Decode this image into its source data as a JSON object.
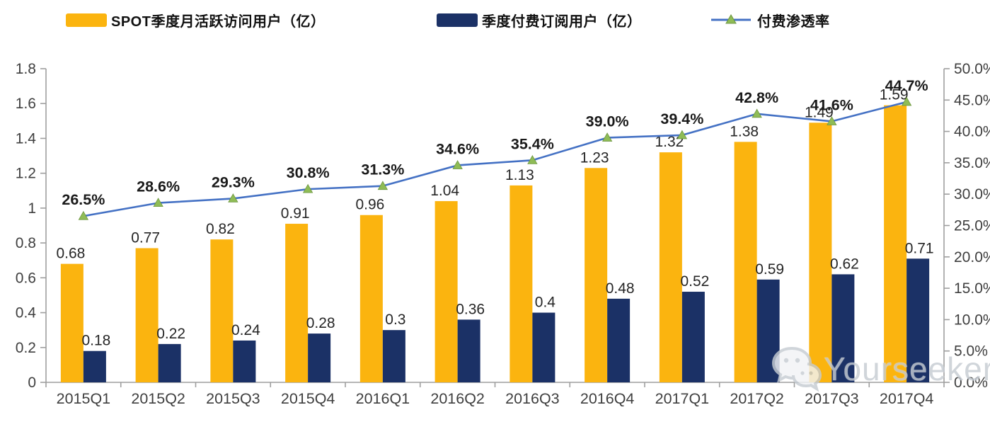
{
  "legend": [
    {
      "label": "SPOT季度月活跃访问用户（亿）",
      "type": "bar",
      "color": "#FBB40F"
    },
    {
      "label": "季度付费订阅用户（亿）",
      "type": "bar",
      "color": "#1B3166"
    },
    {
      "label": "付费渗透率",
      "type": "line",
      "color": "#4471C4",
      "marker_color": "#8FBC56"
    }
  ],
  "watermark": {
    "text": "Yourseeker",
    "icon": "wechat-icon"
  },
  "colors": {
    "mau_bar": "#FBB40F",
    "paid_bar": "#1B3166",
    "line": "#4471C4",
    "marker_fill": "#8FBC56",
    "marker_stroke": "#6d9640",
    "axis": "#9e9e9e",
    "axis_text": "#3f3f3f",
    "value_text": "#262626",
    "pct_text": "#1a1a1a"
  },
  "chart_data": {
    "type": "bar",
    "subtype": "combo-bar-line",
    "title": "",
    "categories": [
      "2015Q1",
      "2015Q2",
      "2015Q3",
      "2015Q4",
      "2016Q1",
      "2016Q2",
      "2016Q3",
      "2016Q4",
      "2017Q1",
      "2017Q2",
      "2017Q3",
      "2017Q4"
    ],
    "series": [
      {
        "name": "SPOT季度月活跃访问用户（亿）",
        "type": "bar",
        "axis": "left",
        "color": "#FBB40F",
        "values": [
          0.68,
          0.77,
          0.82,
          0.91,
          0.96,
          1.04,
          1.13,
          1.23,
          1.32,
          1.38,
          1.49,
          1.59
        ],
        "labels": [
          "0.68",
          "0.77",
          "0.82",
          "0.91",
          "0.96",
          "1.04",
          "1.13",
          "1.23",
          "1.32",
          "1.38",
          "1.49",
          "1.59"
        ]
      },
      {
        "name": "季度付费订阅用户（亿）",
        "type": "bar",
        "axis": "left",
        "color": "#1B3166",
        "values": [
          0.18,
          0.22,
          0.24,
          0.28,
          0.3,
          0.36,
          0.4,
          0.48,
          0.52,
          0.59,
          0.62,
          0.71
        ],
        "labels": [
          "0.18",
          "0.22",
          "0.24",
          "0.28",
          "0.3",
          "0.36",
          "0.4",
          "0.48",
          "0.52",
          "0.59",
          "0.62",
          "0.71"
        ]
      },
      {
        "name": "付费渗透率",
        "type": "line",
        "axis": "right",
        "color": "#4471C4",
        "values": [
          26.5,
          28.6,
          29.3,
          30.8,
          31.3,
          34.6,
          35.4,
          39.0,
          39.4,
          42.8,
          41.6,
          44.7
        ],
        "labels": [
          "26.5%",
          "28.6%",
          "29.3%",
          "30.8%",
          "31.3%",
          "34.6%",
          "35.4%",
          "39.0%",
          "39.4%",
          "42.8%",
          "41.6%",
          "44.7%"
        ]
      }
    ],
    "left_axis": {
      "min": 0,
      "max": 1.8,
      "ticks": [
        "0",
        "0.2",
        "0.4",
        "0.6",
        "0.8",
        "1",
        "1.2",
        "1.4",
        "1.6",
        "1.8"
      ]
    },
    "right_axis": {
      "min": 0,
      "max": 50,
      "ticks": [
        "0.0%",
        "5.0%",
        "10.0%",
        "15.0%",
        "20.0%",
        "25.0%",
        "30.0%",
        "35.0%",
        "40.0%",
        "45.0%",
        "50.0%"
      ]
    },
    "grid": false,
    "legend_position": "top"
  }
}
